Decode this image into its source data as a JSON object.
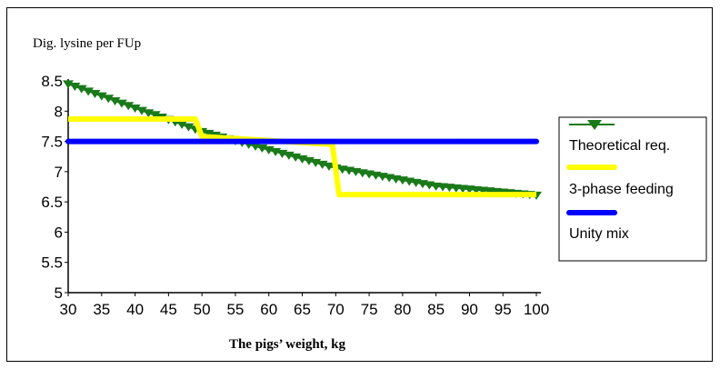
{
  "chart_data": {
    "type": "line",
    "ylabel": "Dig. lysine per FUp",
    "xlabel": "The pigs’ weight, kg",
    "xlim": [
      30,
      100
    ],
    "ylim": [
      5,
      8.5
    ],
    "x_ticks": [
      "30",
      "35",
      "40",
      "45",
      "50",
      "55",
      "60",
      "65",
      "70",
      "75",
      "80",
      "85",
      "90",
      "95",
      "100"
    ],
    "y_ticks": [
      "5",
      "5.5",
      "6",
      "6.5",
      "7",
      "7.5",
      "8",
      "8.5"
    ],
    "grid": false,
    "legend_position": "right",
    "series": [
      {
        "name": "Theoretical req.",
        "color": "#1a7a1a",
        "marker": "triangle-down",
        "x": [
          30,
          31,
          32,
          33,
          34,
          35,
          36,
          37,
          38,
          39,
          40,
          41,
          42,
          43,
          44,
          45,
          46,
          47,
          48,
          49,
          50,
          51,
          52,
          53,
          54,
          55,
          56,
          57,
          58,
          59,
          60,
          61,
          62,
          63,
          64,
          65,
          66,
          67,
          68,
          69,
          70,
          71,
          72,
          73,
          74,
          75,
          76,
          77,
          78,
          79,
          80,
          81,
          82,
          83,
          84,
          85,
          86,
          87,
          88,
          89,
          90,
          91,
          92,
          93,
          94,
          95,
          96,
          97,
          98,
          99,
          100
        ],
        "y": [
          8.45,
          8.41,
          8.37,
          8.33,
          8.29,
          8.25,
          8.21,
          8.17,
          8.13,
          8.09,
          8.05,
          8.01,
          7.97,
          7.94,
          7.9,
          7.86,
          7.82,
          7.78,
          7.74,
          7.7,
          7.66,
          7.63,
          7.6,
          7.57,
          7.54,
          7.51,
          7.48,
          7.45,
          7.42,
          7.39,
          7.36,
          7.33,
          7.3,
          7.27,
          7.24,
          7.21,
          7.18,
          7.15,
          7.12,
          7.09,
          7.06,
          7.04,
          7.02,
          7.0,
          6.98,
          6.96,
          6.94,
          6.92,
          6.9,
          6.88,
          6.86,
          6.84,
          6.82,
          6.8,
          6.78,
          6.76,
          6.75,
          6.74,
          6.73,
          6.72,
          6.71,
          6.7,
          6.69,
          6.68,
          6.67,
          6.66,
          6.65,
          6.64,
          6.63,
          6.62,
          6.61
        ]
      },
      {
        "name": "3-phase feeding",
        "color": "#ffff00",
        "x": [
          30,
          49,
          50,
          69.5,
          70.5,
          100
        ],
        "y": [
          7.87,
          7.87,
          7.58,
          7.45,
          6.62,
          6.62
        ]
      },
      {
        "name": "Unity mix",
        "color": "#0000ff",
        "x": [
          30,
          100
        ],
        "y": [
          7.5,
          7.5
        ]
      }
    ]
  }
}
